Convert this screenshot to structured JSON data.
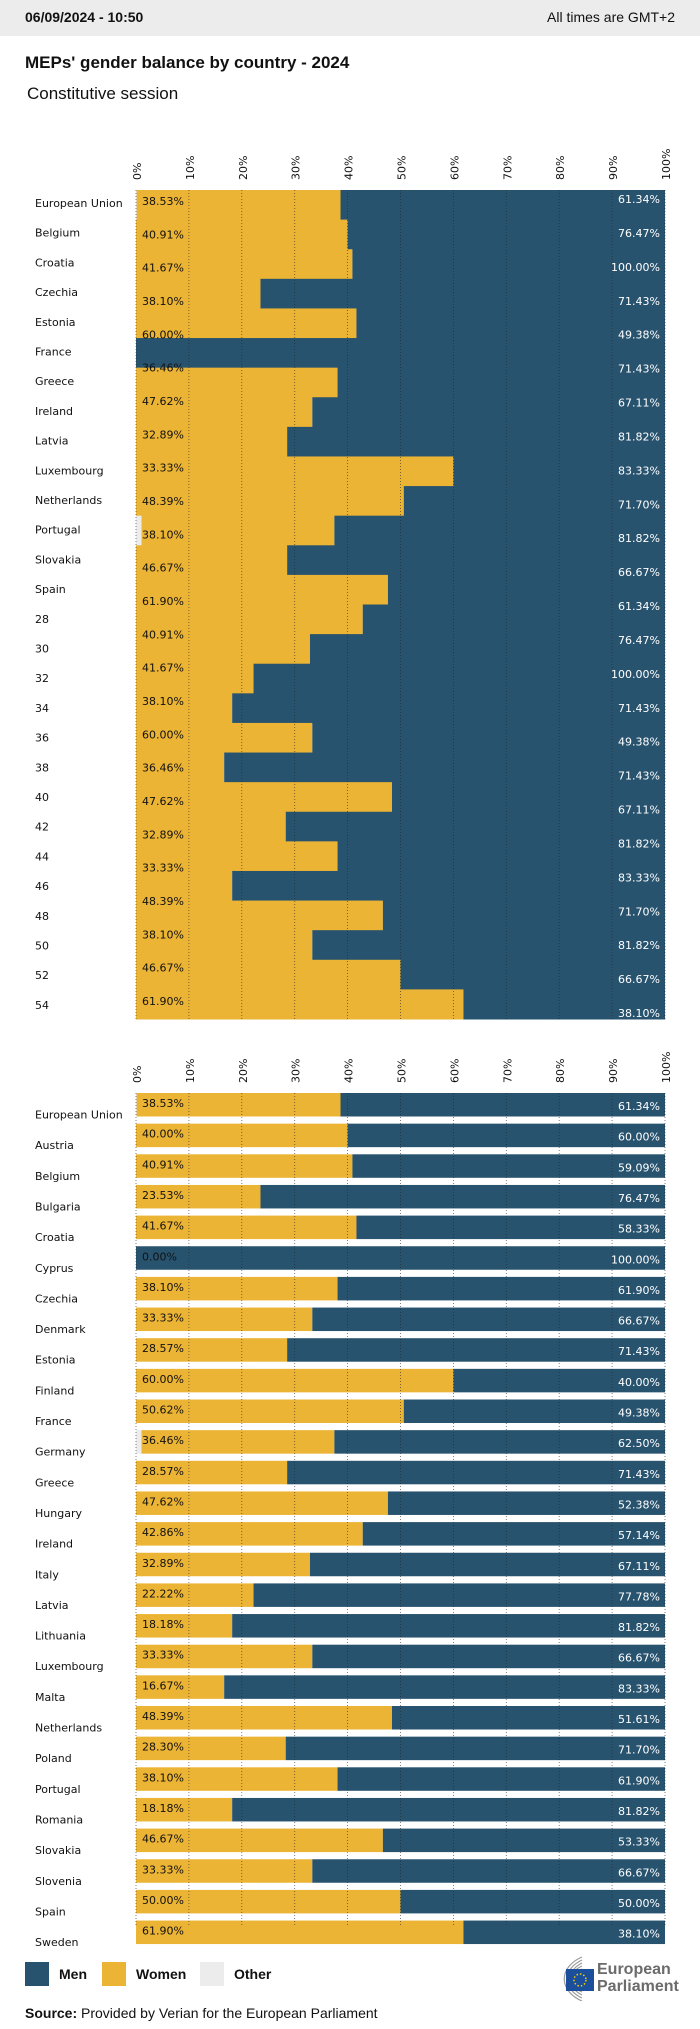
{
  "header": {
    "datetime": "06/09/2024 - 10:50",
    "timezone_note": "All times are GMT+2"
  },
  "title": "MEPs' gender balance by country - 2024",
  "subtitle": "Constitutive session",
  "colors": {
    "men": "#28536f",
    "women": "#ecb434",
    "other": "#ececec"
  },
  "legend": [
    {
      "key": "men",
      "label": "Men"
    },
    {
      "key": "women",
      "label": "Women"
    },
    {
      "key": "other",
      "label": "Other"
    }
  ],
  "source_label": "Source:",
  "source_text": "Provided by Verian for the European Parliament",
  "logo_text": [
    "European",
    "Parliament"
  ],
  "chart_data": [
    {
      "type": "bar",
      "orientation": "horizontal-stacked",
      "note_glitched_render": true,
      "x_ticks": [
        "0%",
        "10%",
        "20%",
        "30%",
        "40%",
        "50%",
        "60%",
        "70%",
        "80%",
        "90%",
        "100%"
      ],
      "xlim": [
        0,
        100
      ],
      "y_labels": [
        "European Union",
        "Belgium",
        "Croatia",
        "Czechia",
        "Estonia",
        "France",
        "Greece",
        "Ireland",
        "Latvia",
        "Luxembourg",
        "Netherlands",
        "Portugal",
        "Slovakia",
        "Spain",
        "28",
        "30",
        "32",
        "34",
        "36",
        "38",
        "40",
        "42",
        "44",
        "46",
        "48",
        "50",
        "52",
        "54"
      ],
      "women_labels": [
        "38.53%",
        "40.91%",
        "41.67%",
        "38.10%",
        "60.00%",
        "36.46%",
        "47.62%",
        "32.89%",
        "33.33%",
        "48.39%",
        "38.10%",
        "46.67%",
        "61.90%",
        "40.91%",
        "41.67%",
        "38.10%",
        "60.00%",
        "36.46%",
        "47.62%",
        "32.89%",
        "33.33%",
        "48.39%",
        "38.10%",
        "46.67%",
        "61.90%"
      ],
      "men_labels": [
        "61.34%",
        "76.47%",
        "100.00%",
        "71.43%",
        "49.38%",
        "71.43%",
        "67.11%",
        "81.82%",
        "83.33%",
        "71.70%",
        "81.82%",
        "66.67%",
        "61.34%",
        "76.47%",
        "100.00%",
        "71.43%",
        "49.38%",
        "71.43%",
        "67.11%",
        "81.82%",
        "83.33%",
        "71.70%",
        "81.82%",
        "66.67%",
        "38.10%"
      ]
    },
    {
      "type": "bar",
      "orientation": "horizontal-stacked",
      "x_ticks": [
        "0%",
        "10%",
        "20%",
        "30%",
        "40%",
        "50%",
        "60%",
        "70%",
        "80%",
        "90%",
        "100%"
      ],
      "xlim": [
        0,
        100
      ],
      "grid": true,
      "categories": [
        "European Union",
        "Austria",
        "Belgium",
        "Bulgaria",
        "Croatia",
        "Cyprus",
        "Czechia",
        "Denmark",
        "Estonia",
        "Finland",
        "France",
        "Germany",
        "Greece",
        "Hungary",
        "Ireland",
        "Italy",
        "Latvia",
        "Lithuania",
        "Luxembourg",
        "Malta",
        "Netherlands",
        "Poland",
        "Portugal",
        "Romania",
        "Slovakia",
        "Slovenia",
        "Spain",
        "Sweden"
      ],
      "series": [
        {
          "name": "Other",
          "values": [
            0.13,
            0,
            0,
            0,
            0,
            0,
            0,
            0,
            0,
            0,
            0,
            1.04,
            0,
            0,
            0,
            0,
            0,
            0,
            0,
            0,
            0,
            0,
            0,
            0,
            0,
            0,
            0,
            0
          ]
        },
        {
          "name": "Women",
          "values": [
            38.53,
            40.0,
            40.91,
            23.53,
            41.67,
            0.0,
            38.1,
            33.33,
            28.57,
            60.0,
            50.62,
            36.46,
            28.57,
            47.62,
            42.86,
            32.89,
            22.22,
            18.18,
            33.33,
            16.67,
            48.39,
            28.3,
            38.1,
            18.18,
            46.67,
            33.33,
            50.0,
            61.9
          ]
        },
        {
          "name": "Men",
          "values": [
            61.34,
            60.0,
            59.09,
            76.47,
            58.33,
            100.0,
            61.9,
            66.67,
            71.43,
            40.0,
            49.38,
            62.5,
            71.43,
            52.38,
            57.14,
            67.11,
            77.78,
            81.82,
            66.67,
            83.33,
            51.61,
            71.7,
            61.9,
            81.82,
            53.33,
            66.67,
            50.0,
            38.1
          ]
        }
      ],
      "women_labels": [
        "38.53%",
        "40.00%",
        "40.91%",
        "23.53%",
        "41.67%",
        "0.00%",
        "38.10%",
        "33.33%",
        "28.57%",
        "60.00%",
        "50.62%",
        "36.46%",
        "28.57%",
        "47.62%",
        "42.86%",
        "32.89%",
        "22.22%",
        "18.18%",
        "33.33%",
        "16.67%",
        "48.39%",
        "28.30%",
        "38.10%",
        "18.18%",
        "46.67%",
        "33.33%",
        "50.00%",
        "61.90%"
      ],
      "men_labels": [
        "61.34%",
        "60.00%",
        "59.09%",
        "76.47%",
        "58.33%",
        "100.00%",
        "61.90%",
        "66.67%",
        "71.43%",
        "40.00%",
        "49.38%",
        "62.50%",
        "71.43%",
        "52.38%",
        "57.14%",
        "67.11%",
        "77.78%",
        "81.82%",
        "66.67%",
        "83.33%",
        "51.61%",
        "71.70%",
        "61.90%",
        "81.82%",
        "53.33%",
        "66.67%",
        "50.00%",
        "38.10%"
      ]
    }
  ]
}
